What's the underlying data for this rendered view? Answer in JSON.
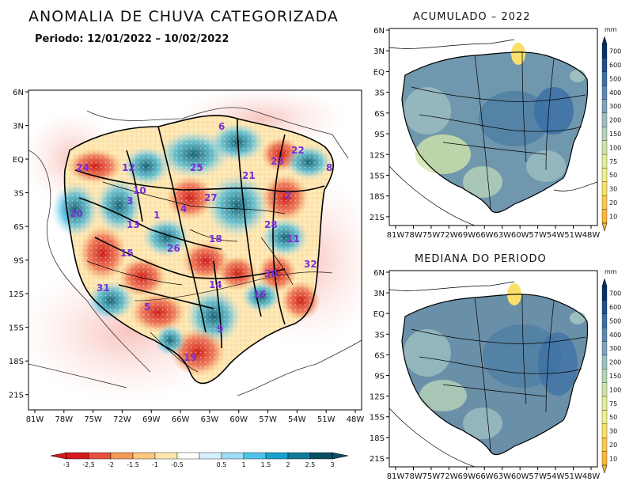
{
  "title": "ANOMALIA DE CHUVA CATEGORIZADA",
  "subtitle": "Periodo: 12/01/2022 – 10/02/2022",
  "main_map": {
    "lat_ticks": [
      "6N",
      "3N",
      "EQ",
      "3S",
      "6S",
      "9S",
      "12S",
      "15S",
      "18S",
      "21S"
    ],
    "lon_ticks": [
      "81W",
      "78W",
      "75W",
      "72W",
      "69W",
      "66W",
      "63W",
      "60W",
      "57W",
      "54W",
      "51W",
      "48W"
    ],
    "basin_labels": [
      "6",
      "24",
      "12",
      "25",
      "22",
      "23",
      "21",
      "10",
      "3",
      "27",
      "2",
      "20",
      "13",
      "4",
      "8",
      "28",
      "18",
      "11",
      "15",
      "26",
      "1",
      "32",
      "14",
      "30",
      "31",
      "5",
      "16",
      "9",
      "19"
    ],
    "colorbar": {
      "ticks": [
        "-3",
        "-2.5",
        "-2",
        "-1.5",
        "-1",
        "-0.5",
        "0.5",
        "1",
        "1.5",
        "2",
        "2.5",
        "3"
      ],
      "colors": [
        "#d7191c",
        "#e8523a",
        "#f29a58",
        "#fbc87c",
        "#fde6b0",
        "#ffffff",
        "#d7f0fa",
        "#9fdcf5",
        "#4fc3ec",
        "#1aa0cc",
        "#117a99",
        "#0b4f63"
      ]
    }
  },
  "panel_top": {
    "title": "ACUMULADO – 2022",
    "lat_ticks": [
      "6N",
      "3N",
      "EQ",
      "3S",
      "6S",
      "9S",
      "12S",
      "15S",
      "18S",
      "21S"
    ],
    "lon_ticks": [
      "81W",
      "78W",
      "75W",
      "72W",
      "69W",
      "66W",
      "63W",
      "60W",
      "57W",
      "54W",
      "51W",
      "48W"
    ]
  },
  "panel_bottom": {
    "title": "MEDIANA DO PERIODO",
    "lat_ticks": [
      "6N",
      "3N",
      "EQ",
      "3S",
      "6S",
      "9S",
      "12S",
      "15S",
      "18S",
      "21S"
    ],
    "lon_ticks": [
      "81W",
      "78W",
      "75W",
      "72W",
      "69W",
      "66W",
      "63W",
      "60W",
      "57W",
      "54W",
      "51W",
      "48W"
    ]
  },
  "mm_colorbar": {
    "unit": "mm",
    "ticks": [
      "700",
      "600",
      "500",
      "400",
      "300",
      "200",
      "150",
      "100",
      "75",
      "50",
      "30",
      "20",
      "10"
    ],
    "colors": [
      "#08306b",
      "#1f4e8c",
      "#3a6ea5",
      "#5b88b3",
      "#7ea3bd",
      "#9dbfc0",
      "#b6d3b8",
      "#cfe3a8",
      "#e3ee9a",
      "#f1f08a",
      "#f8e06a",
      "#fcc94e",
      "#fdb53b"
    ]
  }
}
